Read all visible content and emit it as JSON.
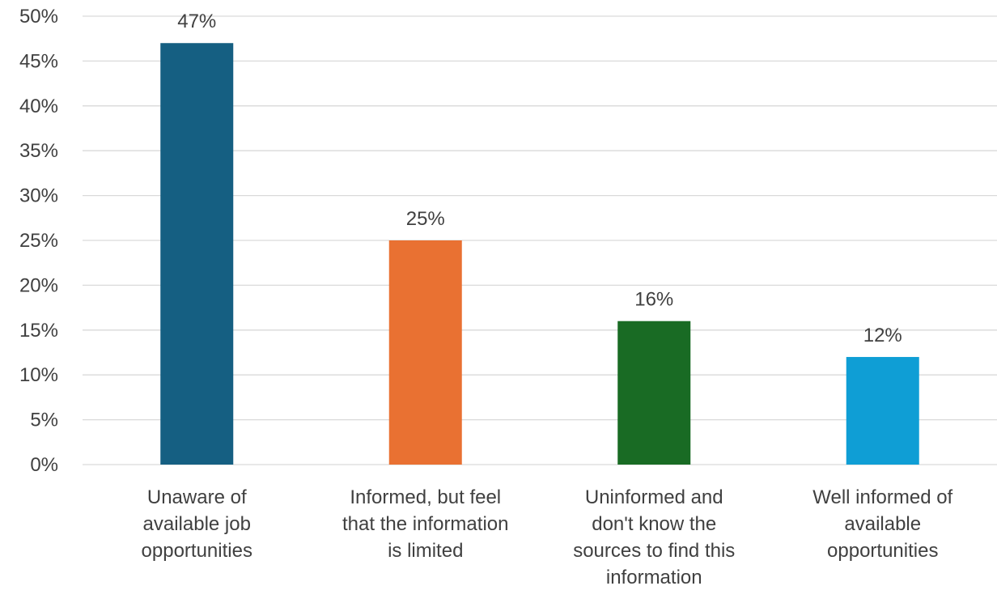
{
  "chart_data": {
    "type": "bar",
    "title": "",
    "xlabel": "",
    "ylabel": "",
    "categories": [
      "Unaware of available job opportunities",
      "Informed, but feel that the information is limited",
      "Uninformed and don't know the sources to find this information",
      "Well informed of available opportunities"
    ],
    "category_lines": [
      [
        "Unaware of",
        "available job",
        "opportunities"
      ],
      [
        "Informed, but feel",
        "that the information",
        "is limited"
      ],
      [
        "Uninformed and",
        "don't know the",
        "sources to find this",
        "information"
      ],
      [
        "Well informed of",
        "available",
        "opportunities"
      ]
    ],
    "values": [
      47,
      25,
      16,
      12
    ],
    "value_labels": [
      "47%",
      "25%",
      "16%",
      "12%"
    ],
    "colors": [
      "#155f82",
      "#e97132",
      "#196b24",
      "#0f9ed5"
    ],
    "ylim": [
      0,
      50
    ],
    "ystep": 5,
    "y_tick_labels": [
      "0%",
      "5%",
      "10%",
      "15%",
      "20%",
      "25%",
      "30%",
      "35%",
      "40%",
      "45%",
      "50%"
    ],
    "grid": true,
    "legend": "none"
  }
}
